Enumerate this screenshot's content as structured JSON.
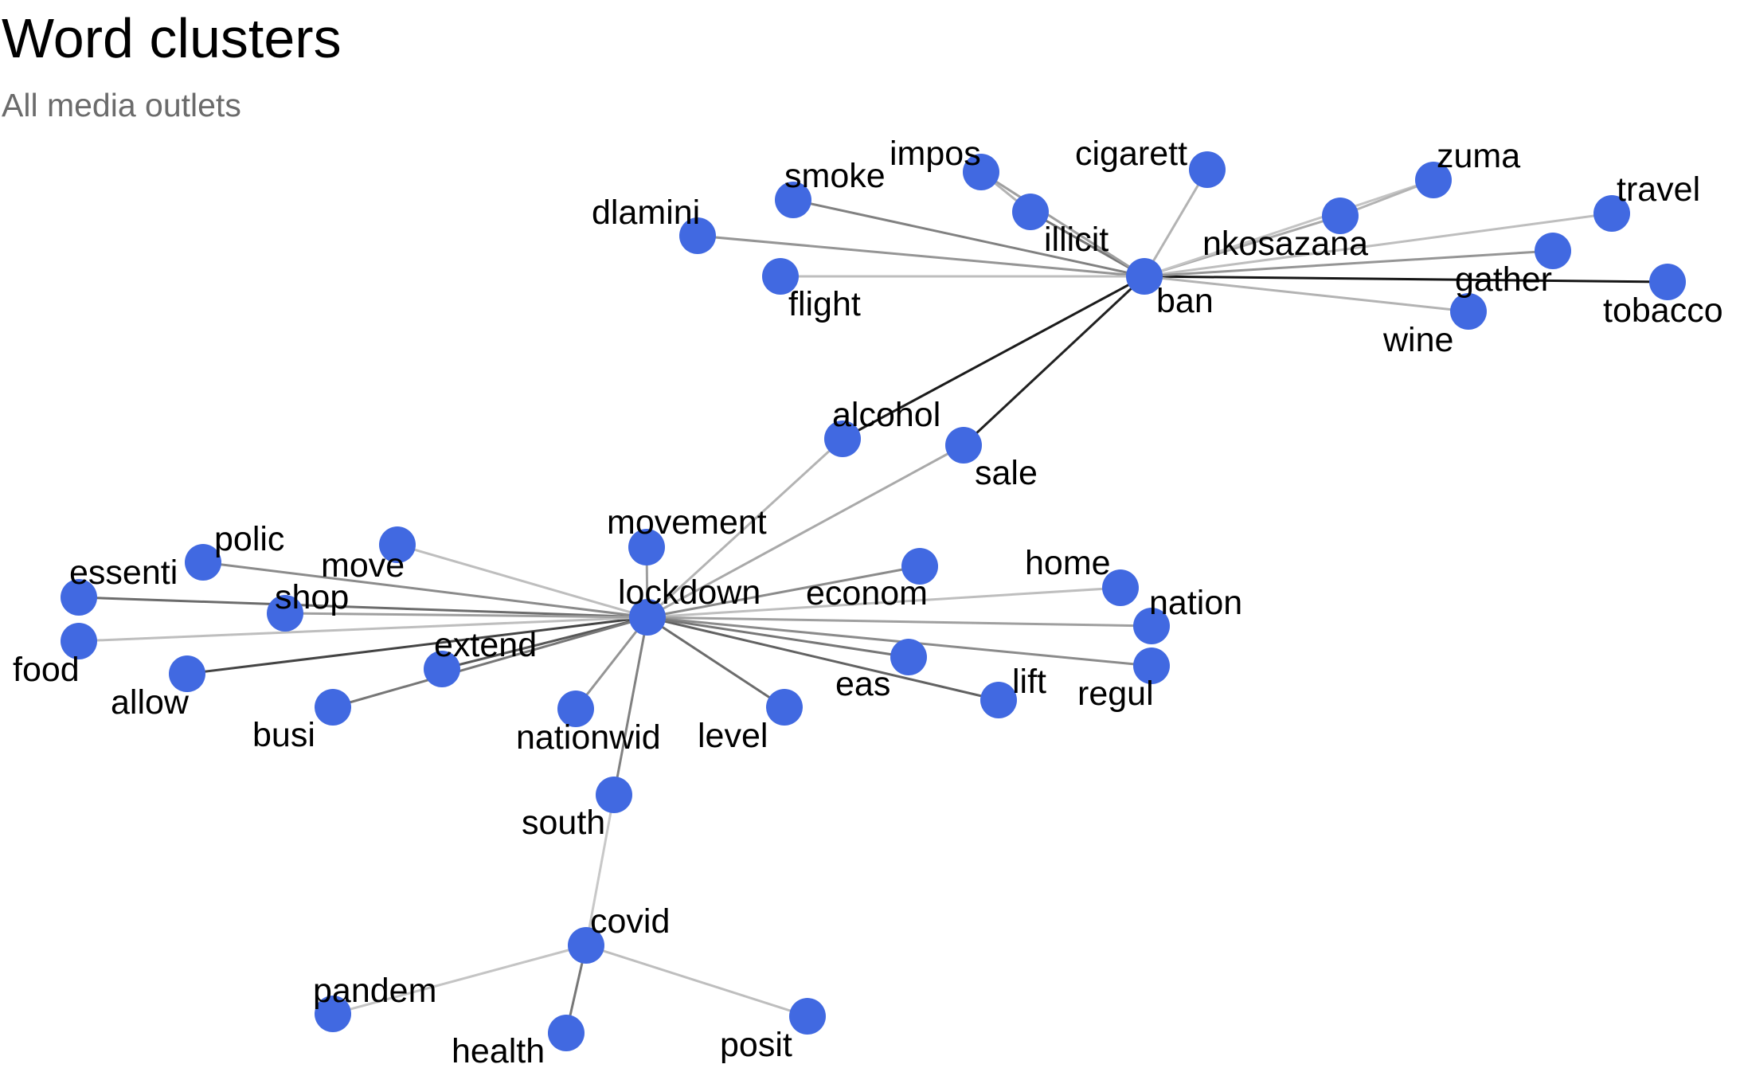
{
  "title": "Word clusters",
  "subtitle": "All media outlets",
  "colors": {
    "node": "#4169E1",
    "edge_strong": "#111111",
    "edge_weak": "#dcdcdc"
  },
  "nodes": [
    {
      "id": "ban",
      "label": "ban"
    },
    {
      "id": "smoke",
      "label": "smoke"
    },
    {
      "id": "impos",
      "label": "impos"
    },
    {
      "id": "cigarett",
      "label": "cigarett"
    },
    {
      "id": "illicit",
      "label": "illicit"
    },
    {
      "id": "dlamini",
      "label": "dlamini"
    },
    {
      "id": "flight",
      "label": "flight"
    },
    {
      "id": "zuma",
      "label": "zuma"
    },
    {
      "id": "nkosazana",
      "label": "nkosazana"
    },
    {
      "id": "travel",
      "label": "travel"
    },
    {
      "id": "gather",
      "label": "gather"
    },
    {
      "id": "tobacco",
      "label": "tobacco"
    },
    {
      "id": "wine",
      "label": "wine"
    },
    {
      "id": "alcohol",
      "label": "alcohol"
    },
    {
      "id": "sale",
      "label": "sale"
    },
    {
      "id": "lockdown",
      "label": "lockdown"
    },
    {
      "id": "movement",
      "label": "movement"
    },
    {
      "id": "econom",
      "label": "econom"
    },
    {
      "id": "home",
      "label": "home"
    },
    {
      "id": "nation",
      "label": "nation"
    },
    {
      "id": "regul",
      "label": "regul"
    },
    {
      "id": "lift",
      "label": "lift"
    },
    {
      "id": "eas",
      "label": "eas"
    },
    {
      "id": "level",
      "label": "level"
    },
    {
      "id": "nationwid",
      "label": "nationwid"
    },
    {
      "id": "extend",
      "label": "extend"
    },
    {
      "id": "busi",
      "label": "busi"
    },
    {
      "id": "allow",
      "label": "allow"
    },
    {
      "id": "food",
      "label": "food"
    },
    {
      "id": "essenti",
      "label": "essenti"
    },
    {
      "id": "shop",
      "label": "shop"
    },
    {
      "id": "polic",
      "label": "polic"
    },
    {
      "id": "move",
      "label": "move"
    },
    {
      "id": "south",
      "label": "south"
    },
    {
      "id": "covid",
      "label": "covid"
    },
    {
      "id": "pandem",
      "label": "pandem"
    },
    {
      "id": "health",
      "label": "health"
    },
    {
      "id": "posit",
      "label": "posit"
    }
  ],
  "edges": [
    {
      "source": "ban",
      "target": "tobacco",
      "weight": 0.98
    },
    {
      "source": "ban",
      "target": "alcohol",
      "weight": 0.95
    },
    {
      "source": "ban",
      "target": "sale",
      "weight": 0.92
    },
    {
      "source": "ban",
      "target": "smoke",
      "weight": 0.45
    },
    {
      "source": "ban",
      "target": "illicit",
      "weight": 0.5
    },
    {
      "source": "ban",
      "target": "impos",
      "weight": 0.3
    },
    {
      "source": "ban",
      "target": "cigarett",
      "weight": 0.2
    },
    {
      "source": "ban",
      "target": "dlamini",
      "weight": 0.35
    },
    {
      "source": "ban",
      "target": "flight",
      "weight": 0.15
    },
    {
      "source": "ban",
      "target": "nkosazana",
      "weight": 0.25
    },
    {
      "source": "ban",
      "target": "zuma",
      "weight": 0.12
    },
    {
      "source": "ban",
      "target": "travel",
      "weight": 0.15
    },
    {
      "source": "ban",
      "target": "gather",
      "weight": 0.35
    },
    {
      "source": "ban",
      "target": "wine",
      "weight": 0.2
    },
    {
      "source": "nkosazana",
      "target": "zuma",
      "weight": 0.2
    },
    {
      "source": "illicit",
      "target": "impos",
      "weight": 0.2
    },
    {
      "source": "lockdown",
      "target": "alcohol",
      "weight": 0.2
    },
    {
      "source": "lockdown",
      "target": "sale",
      "weight": 0.25
    },
    {
      "source": "lockdown",
      "target": "movement",
      "weight": 0.3
    },
    {
      "source": "lockdown",
      "target": "econom",
      "weight": 0.4
    },
    {
      "source": "lockdown",
      "target": "home",
      "weight": 0.15
    },
    {
      "source": "lockdown",
      "target": "nation",
      "weight": 0.3
    },
    {
      "source": "lockdown",
      "target": "regul",
      "weight": 0.4
    },
    {
      "source": "lockdown",
      "target": "lift",
      "weight": 0.6
    },
    {
      "source": "lockdown",
      "target": "eas",
      "weight": 0.5
    },
    {
      "source": "lockdown",
      "target": "level",
      "weight": 0.55
    },
    {
      "source": "lockdown",
      "target": "nationwid",
      "weight": 0.35
    },
    {
      "source": "lockdown",
      "target": "extend",
      "weight": 0.65
    },
    {
      "source": "lockdown",
      "target": "busi",
      "weight": 0.5
    },
    {
      "source": "lockdown",
      "target": "allow",
      "weight": 0.75
    },
    {
      "source": "lockdown",
      "target": "food",
      "weight": 0.15
    },
    {
      "source": "lockdown",
      "target": "essenti",
      "weight": 0.55
    },
    {
      "source": "lockdown",
      "target": "shop",
      "weight": 0.3
    },
    {
      "source": "lockdown",
      "target": "polic",
      "weight": 0.4
    },
    {
      "source": "lockdown",
      "target": "move",
      "weight": 0.15
    },
    {
      "source": "lockdown",
      "target": "south",
      "weight": 0.45
    },
    {
      "source": "south",
      "target": "covid",
      "weight": 0.1
    },
    {
      "source": "covid",
      "target": "pandem",
      "weight": 0.12
    },
    {
      "source": "covid",
      "target": "health",
      "weight": 0.5
    },
    {
      "source": "covid",
      "target": "posit",
      "weight": 0.15
    }
  ]
}
